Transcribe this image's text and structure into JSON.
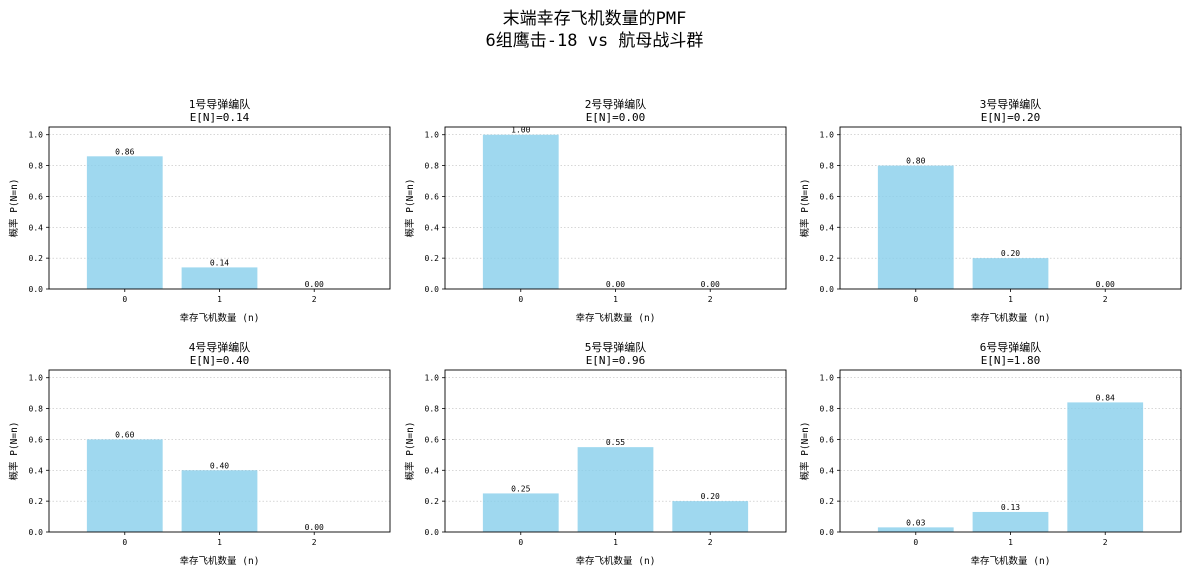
{
  "figure": {
    "title_line1": "末端幸存飞机数量的PMF",
    "title_line2": "6组鹰击-18 vs 航母战斗群",
    "bar_color": "#87CEEB"
  },
  "chart_data": [
    {
      "type": "bar",
      "title": "1号导弹编队",
      "subtitle": "E[N]=0.14",
      "categories": [
        "0",
        "1",
        "2"
      ],
      "values": [
        0.86,
        0.14,
        0.0
      ],
      "labels": [
        "0.86",
        "0.14",
        "0.00"
      ],
      "xlabel": "幸存飞机数量 (n)",
      "ylabel": "概率 P(N=n)",
      "ylim": [
        0,
        1.05
      ],
      "yticks": [
        "0.0",
        "0.2",
        "0.4",
        "0.6",
        "0.8",
        "1.0"
      ],
      "grid": "y-dotted"
    },
    {
      "type": "bar",
      "title": "2号导弹编队",
      "subtitle": "E[N]=0.00",
      "categories": [
        "0",
        "1",
        "2"
      ],
      "values": [
        1.0,
        0.0,
        0.0
      ],
      "labels": [
        "1.00",
        "0.00",
        "0.00"
      ],
      "xlabel": "幸存飞机数量 (n)",
      "ylabel": "概率 P(N=n)",
      "ylim": [
        0,
        1.05
      ],
      "yticks": [
        "0.0",
        "0.2",
        "0.4",
        "0.6",
        "0.8",
        "1.0"
      ],
      "grid": "y-dotted"
    },
    {
      "type": "bar",
      "title": "3号导弹编队",
      "subtitle": "E[N]=0.20",
      "categories": [
        "0",
        "1",
        "2"
      ],
      "values": [
        0.8,
        0.2,
        0.0
      ],
      "labels": [
        "0.80",
        "0.20",
        "0.00"
      ],
      "xlabel": "幸存飞机数量 (n)",
      "ylabel": "概率 P(N=n)",
      "ylim": [
        0,
        1.05
      ],
      "yticks": [
        "0.0",
        "0.2",
        "0.4",
        "0.6",
        "0.8",
        "1.0"
      ],
      "grid": "y-dotted"
    },
    {
      "type": "bar",
      "title": "4号导弹编队",
      "subtitle": "E[N]=0.40",
      "categories": [
        "0",
        "1",
        "2"
      ],
      "values": [
        0.6,
        0.4,
        0.0
      ],
      "labels": [
        "0.60",
        "0.40",
        "0.00"
      ],
      "xlabel": "幸存飞机数量 (n)",
      "ylabel": "概率 P(N=n)",
      "ylim": [
        0,
        1.05
      ],
      "yticks": [
        "0.0",
        "0.2",
        "0.4",
        "0.6",
        "0.8",
        "1.0"
      ],
      "grid": "y-dotted"
    },
    {
      "type": "bar",
      "title": "5号导弹编队",
      "subtitle": "E[N]=0.96",
      "categories": [
        "0",
        "1",
        "2"
      ],
      "values": [
        0.25,
        0.55,
        0.2
      ],
      "labels": [
        "0.25",
        "0.55",
        "0.20"
      ],
      "xlabel": "幸存飞机数量 (n)",
      "ylabel": "概率 P(N=n)",
      "ylim": [
        0,
        1.05
      ],
      "yticks": [
        "0.0",
        "0.2",
        "0.4",
        "0.6",
        "0.8",
        "1.0"
      ],
      "grid": "y-dotted"
    },
    {
      "type": "bar",
      "title": "6号导弹编队",
      "subtitle": "E[N]=1.80",
      "categories": [
        "0",
        "1",
        "2"
      ],
      "values": [
        0.03,
        0.13,
        0.84
      ],
      "labels": [
        "0.03",
        "0.13",
        "0.84"
      ],
      "xlabel": "幸存飞机数量 (n)",
      "ylabel": "概率 P(N=n)",
      "ylim": [
        0,
        1.05
      ],
      "yticks": [
        "0.0",
        "0.2",
        "0.4",
        "0.6",
        "0.8",
        "1.0"
      ],
      "grid": "y-dotted"
    }
  ]
}
